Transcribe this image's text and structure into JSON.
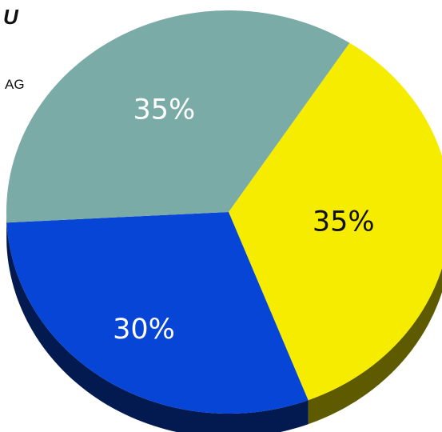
{
  "corner_letter": "U",
  "corner_code": "AG",
  "colors": {
    "yellow": "#f5ec00",
    "blue": "#0745d6",
    "teal": "#7aaba7"
  },
  "chart_data": {
    "type": "pie",
    "style": "3d",
    "slices": [
      {
        "label": "35%",
        "value": 35,
        "color": "#f5ec00"
      },
      {
        "label": "30%",
        "value": 30,
        "color": "#0745d6"
      },
      {
        "label": "35%",
        "value": 35,
        "color": "#7aaba7"
      }
    ]
  }
}
